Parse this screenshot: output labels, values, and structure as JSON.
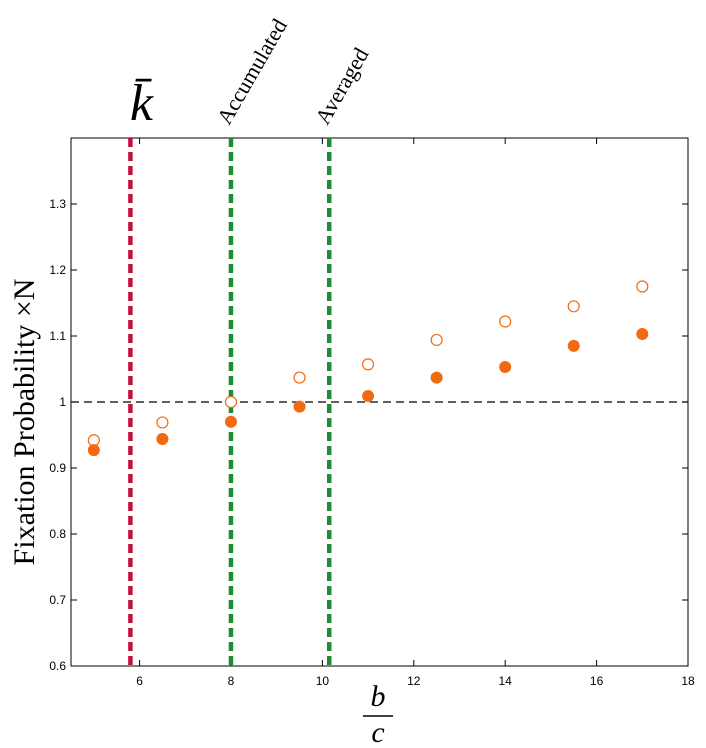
{
  "chart_data": {
    "type": "scatter",
    "xlabel_numerator": "b",
    "xlabel_denominator": "c",
    "ylabel": "Fixation Probability ×N",
    "xlim": [
      4.5,
      18
    ],
    "ylim": [
      0.6,
      1.4
    ],
    "xticks": [
      6,
      8,
      10,
      12,
      14,
      16,
      18
    ],
    "xtick_labels": [
      "6",
      "8",
      "10",
      "12",
      "14",
      "16",
      "18"
    ],
    "yticks": [
      0.6,
      0.7,
      0.8,
      0.9,
      1.0,
      1.1,
      1.2,
      1.3
    ],
    "ytick_labels": [
      "0.6",
      "0.7",
      "0.8",
      "0.9",
      "1",
      "1.1",
      "1.2",
      "1.3"
    ],
    "grid": false,
    "series": [
      {
        "marker": "open-circle",
        "color": "#f26a10",
        "x": [
          5,
          6.5,
          8,
          9.5,
          11,
          12.5,
          14,
          15.5,
          17
        ],
        "y": [
          0.942,
          0.969,
          1.0,
          1.037,
          1.057,
          1.094,
          1.122,
          1.145,
          1.175
        ]
      },
      {
        "marker": "filled-circle",
        "color": "#f26a10",
        "x": [
          5,
          6.5,
          8,
          9.5,
          11,
          12.5,
          14,
          15.5,
          17
        ],
        "y": [
          0.927,
          0.944,
          0.97,
          0.993,
          1.009,
          1.037,
          1.053,
          1.085,
          1.103
        ]
      }
    ],
    "reference_line": {
      "y": 1.0,
      "style": "dashed",
      "color": "#000000"
    },
    "vertical_lines": [
      {
        "x": 5.8,
        "label": "k̄",
        "color": "#c0143c",
        "style": "dashed"
      },
      {
        "x": 8.0,
        "label": "Accumulated",
        "color": "#1e8c32",
        "style": "dashed"
      },
      {
        "x": 10.15,
        "label": "Averaged",
        "color": "#1e8c32",
        "style": "dashed"
      }
    ]
  }
}
